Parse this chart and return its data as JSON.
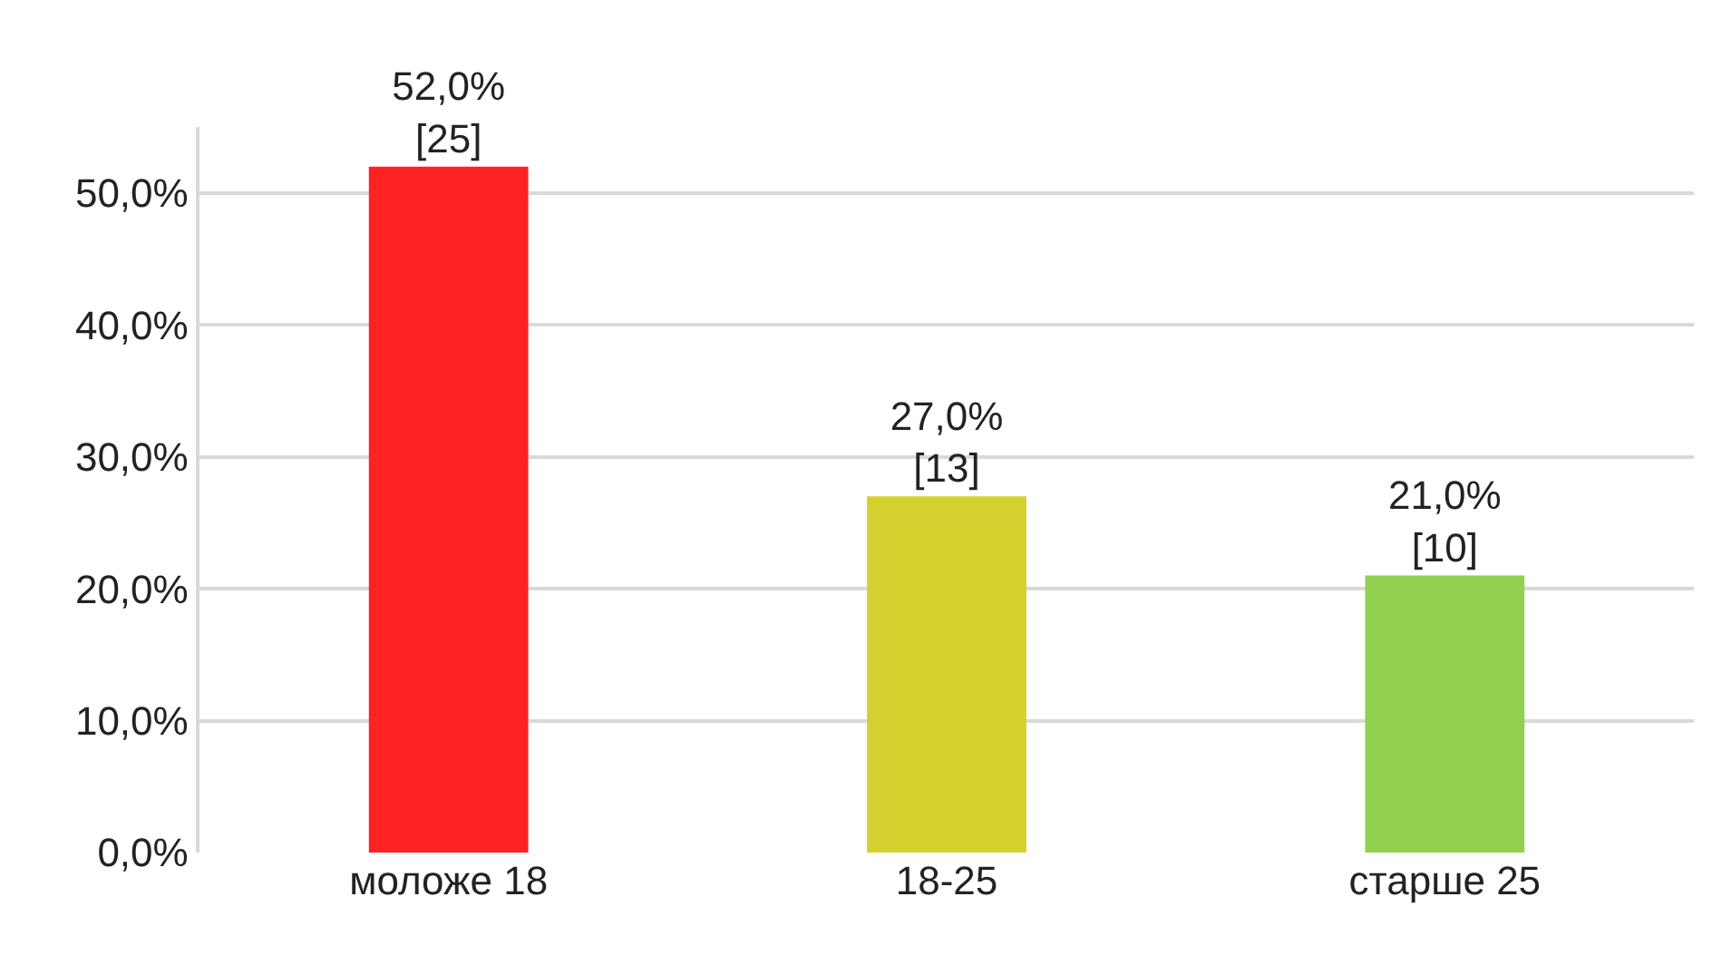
{
  "chart_data": {
    "type": "bar",
    "categories": [
      "моложе 18",
      "18-25",
      "старше 25"
    ],
    "values": [
      52,
      27,
      21
    ],
    "colors": [
      "#ff2222",
      "#d4d12f",
      "#92d050"
    ],
    "value_labels": [
      "52,0%\n[25]",
      "27,0%\n[13]",
      "21,0%\n[10]"
    ],
    "ylim": [
      0,
      55
    ],
    "yticks": [
      {
        "value": 0,
        "label": "0,0%"
      },
      {
        "value": 10,
        "label": "10,0%"
      },
      {
        "value": 20,
        "label": "20,0%"
      },
      {
        "value": 30,
        "label": "30,0%"
      },
      {
        "value": 40,
        "label": "40,0%"
      },
      {
        "value": 50,
        "label": "50,0%"
      }
    ],
    "grid": "y",
    "legend": false
  }
}
